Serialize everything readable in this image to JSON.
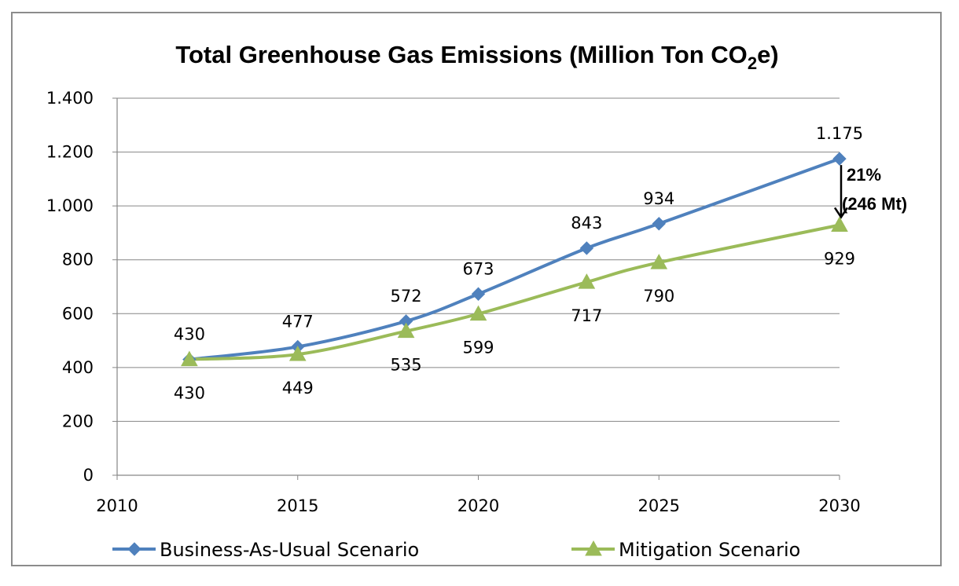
{
  "chart_data": {
    "type": "line",
    "title_main": "Total Greenhouse Gas Emissions (Million Ton CO",
    "title_sub": "2",
    "title_end": "e)",
    "xlim": [
      2010,
      2030
    ],
    "ylim": [
      0,
      1400
    ],
    "x_ticks": [
      {
        "value": 2010,
        "label": "2010"
      },
      {
        "value": 2015,
        "label": "2015"
      },
      {
        "value": 2020,
        "label": "2020"
      },
      {
        "value": 2025,
        "label": "2025"
      },
      {
        "value": 2030,
        "label": "2030"
      }
    ],
    "y_ticks": [
      {
        "value": 0,
        "label": "0"
      },
      {
        "value": 200,
        "label": "200"
      },
      {
        "value": 400,
        "label": "400"
      },
      {
        "value": 600,
        "label": "600"
      },
      {
        "value": 800,
        "label": "800"
      },
      {
        "value": 1000,
        "label": "1.000"
      },
      {
        "value": 1200,
        "label": "1.200"
      },
      {
        "value": 1400,
        "label": "1.400"
      }
    ],
    "grid": true,
    "legend_position": "bottom",
    "series": [
      {
        "name": "Business-As-Usual Scenario",
        "color": "#4f81bd",
        "marker": "diamond",
        "x": [
          2012,
          2015,
          2018,
          2020,
          2023,
          2025,
          2030
        ],
        "values": [
          430,
          477,
          572,
          673,
          843,
          934,
          1175
        ],
        "labels": [
          "430",
          "477",
          "572",
          "673",
          "843",
          "934",
          "1.175"
        ],
        "label_side": "above"
      },
      {
        "name": "Mitigation Scenario",
        "color": "#9bbb59",
        "marker": "triangle",
        "x": [
          2012,
          2015,
          2018,
          2020,
          2023,
          2025,
          2030
        ],
        "values": [
          430,
          449,
          535,
          599,
          717,
          790,
          929
        ],
        "labels": [
          "430",
          "449",
          "535",
          "599",
          "717",
          "790",
          "929"
        ],
        "label_side": "below"
      }
    ],
    "annotation": {
      "line1": "21%",
      "line2": "(246 Mt)",
      "x": 2030,
      "from": 1175,
      "to": 929
    }
  }
}
